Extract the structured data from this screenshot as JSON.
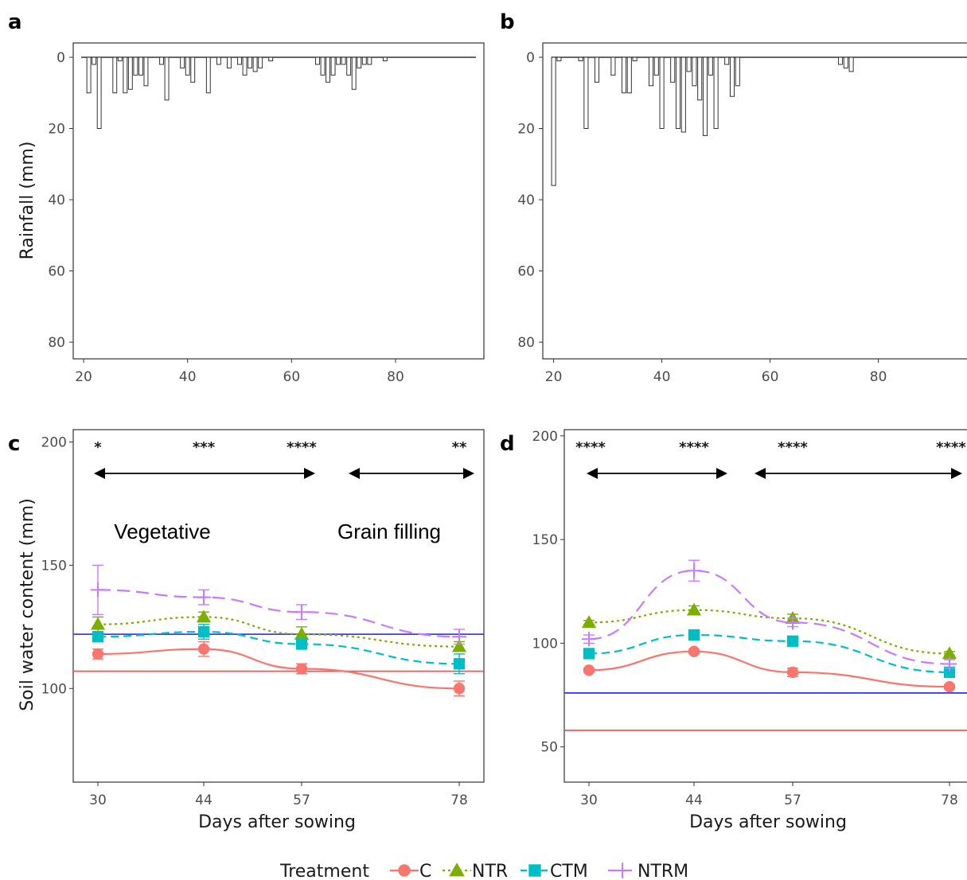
{
  "panel_letters": [
    "a",
    "b",
    "c",
    "d"
  ],
  "colors": {
    "C": "#f8766d",
    "NTR": "#7cae00",
    "CTM": "#00bfc4",
    "NTRM": "#c77cff",
    "ref_blue": "#3b3bff",
    "ref_red": "#f0555a",
    "bar_fill": "#ffffff",
    "bar_stroke": "#333333"
  },
  "legend": {
    "title": "Treatment",
    "items": [
      {
        "key": "C",
        "label": "C",
        "marker": "circle"
      },
      {
        "key": "NTR",
        "label": "NTR",
        "marker": "triangle"
      },
      {
        "key": "CTM",
        "label": "CTM",
        "marker": "square"
      },
      {
        "key": "NTRM",
        "label": "NTRM",
        "marker": "plus"
      }
    ]
  },
  "chart_data": [
    {
      "panel": "a",
      "type": "bar",
      "ylabel": "Rainfall (mm)",
      "xlabel": "",
      "y_reversed": true,
      "xlim": [
        18,
        97
      ],
      "ylim": [
        0,
        82
      ],
      "x_ticks": [
        20,
        40,
        60,
        80
      ],
      "y_ticks": [
        0,
        20,
        40,
        60,
        80
      ],
      "grid": false,
      "x": [
        20,
        21,
        22,
        23,
        24,
        25,
        26,
        27,
        28,
        29,
        30,
        31,
        32,
        33,
        34,
        35,
        36,
        37,
        38,
        39,
        40,
        41,
        42,
        43,
        44,
        45,
        46,
        47,
        48,
        49,
        50,
        51,
        52,
        53,
        54,
        55,
        56,
        57,
        58,
        59,
        60,
        61,
        62,
        63,
        64,
        65,
        66,
        67,
        68,
        69,
        70,
        71,
        72,
        73,
        74,
        75,
        76,
        77,
        78,
        79,
        80,
        81,
        82,
        83,
        84,
        85,
        86,
        87,
        88,
        89,
        90,
        91,
        92,
        93,
        94,
        95
      ],
      "values": [
        0,
        10,
        2,
        20,
        0,
        0,
        10,
        1,
        10,
        9,
        5,
        5,
        8,
        0,
        0,
        2,
        12,
        0,
        0,
        3,
        5,
        7,
        0,
        0,
        10,
        0,
        2,
        0,
        3,
        0,
        2,
        5,
        3,
        4,
        3,
        0,
        1,
        0,
        0,
        0,
        0,
        0,
        0,
        0,
        0,
        2,
        5,
        7,
        5,
        2,
        2,
        5,
        9,
        3,
        2,
        2,
        0,
        0,
        1,
        0,
        0,
        0,
        0,
        0,
        0,
        0,
        0,
        0,
        0,
        0,
        0,
        0,
        0,
        0,
        0,
        0
      ]
    },
    {
      "panel": "b",
      "type": "bar",
      "ylabel": "",
      "xlabel": "",
      "y_reversed": true,
      "xlim": [
        18,
        98
      ],
      "ylim": [
        0,
        82
      ],
      "x_ticks": [
        20,
        40,
        60,
        80
      ],
      "y_ticks": [
        0,
        20,
        40,
        60,
        80
      ],
      "grid": false,
      "x": [
        20,
        21,
        22,
        23,
        24,
        25,
        26,
        27,
        28,
        29,
        30,
        31,
        32,
        33,
        34,
        35,
        36,
        37,
        38,
        39,
        40,
        41,
        42,
        43,
        44,
        45,
        46,
        47,
        48,
        49,
        50,
        51,
        52,
        53,
        54,
        55,
        56,
        57,
        58,
        59,
        60,
        61,
        62,
        63,
        64,
        65,
        66,
        67,
        68,
        69,
        70,
        71,
        72,
        73,
        74,
        75,
        76,
        77,
        78,
        79,
        80,
        81,
        82,
        83,
        84,
        85,
        86,
        87,
        88,
        89,
        90,
        91,
        92,
        93,
        94,
        95,
        96
      ],
      "values": [
        36,
        1,
        0,
        0,
        0,
        1,
        20,
        0,
        7,
        0,
        0,
        5,
        0,
        10,
        10,
        1,
        0,
        0,
        8,
        5,
        20,
        0,
        7,
        20,
        21,
        4,
        8,
        12,
        22,
        5,
        20,
        0,
        2,
        11,
        8,
        0,
        0,
        0,
        0,
        0,
        0,
        0,
        0,
        0,
        0,
        0,
        0,
        0,
        0,
        0,
        0,
        0,
        0,
        2,
        3,
        4,
        0,
        0,
        0,
        0,
        0,
        0,
        0,
        0,
        0,
        0,
        0,
        0,
        0,
        0,
        0,
        0,
        0,
        0,
        0,
        0,
        0
      ]
    },
    {
      "panel": "c",
      "type": "line",
      "xlabel": "Days after sowing",
      "ylabel": "Soil water content (mm)",
      "categories": [
        "30",
        "44",
        "57",
        "78"
      ],
      "ylim": [
        62,
        205
      ],
      "y_ticks": [
        100,
        150,
        200
      ],
      "grid": false,
      "series": [
        {
          "name": "C",
          "values": [
            114,
            116,
            108,
            100
          ],
          "err": [
            2,
            3,
            2,
            3
          ]
        },
        {
          "name": "NTR",
          "values": [
            126,
            129,
            122,
            117
          ],
          "err": [
            3,
            2,
            3,
            2
          ]
        },
        {
          "name": "CTM",
          "values": [
            121,
            123,
            118,
            110
          ],
          "err": [
            2,
            3,
            2,
            4
          ]
        },
        {
          "name": "NTRM",
          "values": [
            140,
            137,
            131,
            121
          ],
          "err": [
            10,
            3,
            3,
            3
          ]
        }
      ],
      "ref_lines": [
        {
          "color": "blue",
          "y": 122
        },
        {
          "color": "red",
          "y": 107
        }
      ],
      "significance": [
        "*",
        "***",
        "****",
        "**"
      ],
      "stages": [
        {
          "label": "Vegetative",
          "from": "30",
          "to": "57"
        },
        {
          "label": "Grain filling",
          "from": "57",
          "to": "78"
        }
      ]
    },
    {
      "panel": "d",
      "type": "line",
      "xlabel": "Days after sowing",
      "ylabel": "",
      "categories": [
        "30",
        "44",
        "57",
        "78"
      ],
      "ylim": [
        33,
        203
      ],
      "y_ticks": [
        50,
        100,
        150,
        200
      ],
      "grid": false,
      "series": [
        {
          "name": "C",
          "values": [
            87,
            96,
            86,
            79
          ],
          "err": [
            1,
            1,
            2,
            1
          ]
        },
        {
          "name": "NTR",
          "values": [
            110,
            116,
            112,
            95
          ],
          "err": [
            1,
            2,
            2,
            1
          ]
        },
        {
          "name": "CTM",
          "values": [
            95,
            104,
            101,
            86
          ],
          "err": [
            1,
            2,
            2,
            1
          ]
        },
        {
          "name": "NTRM",
          "values": [
            102,
            135,
            110,
            90
          ],
          "err": [
            2,
            5,
            2,
            2
          ]
        }
      ],
      "ref_lines": [
        {
          "color": "blue",
          "y": 76
        },
        {
          "color": "red",
          "y": 58
        }
      ],
      "significance": [
        "****",
        "****",
        "****",
        "****"
      ],
      "stages": [
        {
          "label": "",
          "from": "30",
          "to": "48"
        },
        {
          "label": "",
          "from": "52",
          "to": "78"
        }
      ]
    }
  ]
}
